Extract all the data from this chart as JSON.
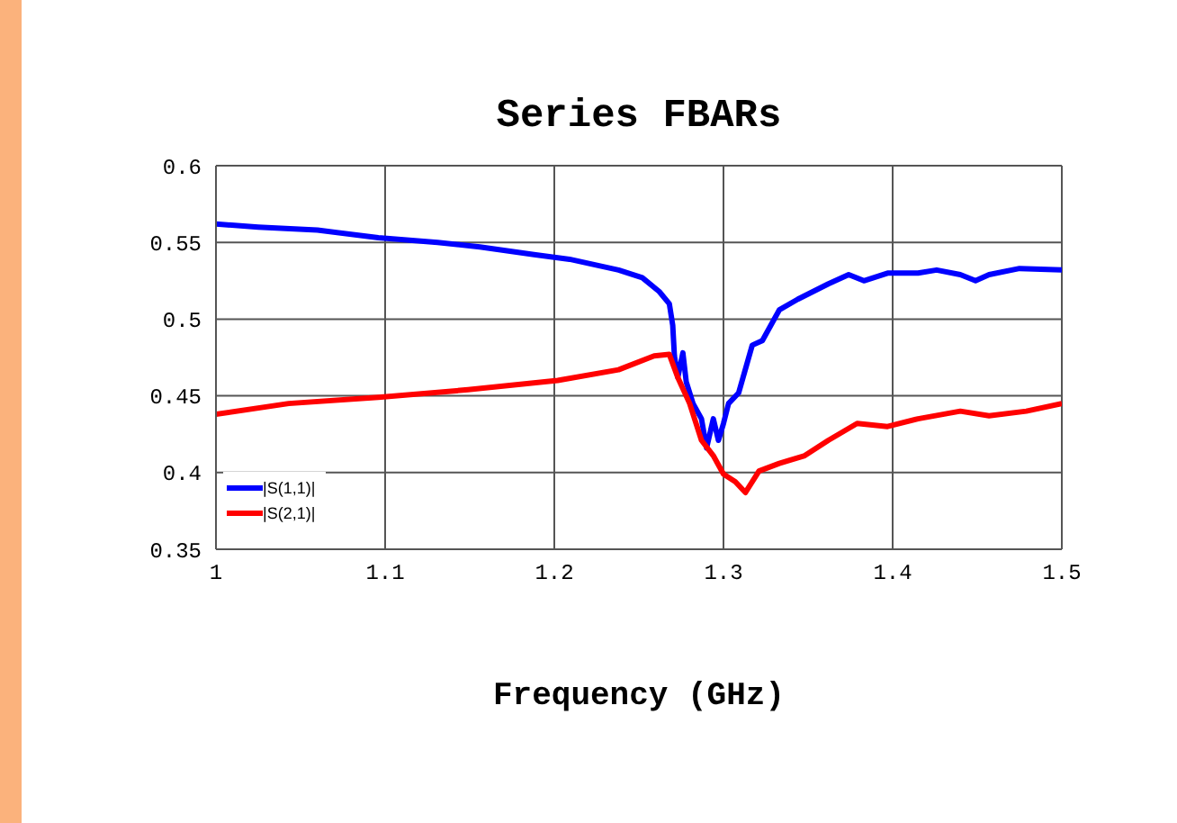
{
  "chart_data": {
    "type": "line",
    "title": "Series FBARs",
    "xlabel": "Frequency (GHz)",
    "xlim": [
      1,
      1.5
    ],
    "xticks": [
      1,
      1.1,
      1.2,
      1.3,
      1.4,
      1.5
    ],
    "ylim": [
      0.35,
      0.6
    ],
    "yticks": [
      0.35,
      0.4,
      0.45,
      0.5,
      0.55,
      0.6
    ],
    "grid": true,
    "legend": "bottom left",
    "series": [
      {
        "name": "|S(1,1)|",
        "color": "#0000ff",
        "x": [
          1.0,
          1.025,
          1.06,
          1.096,
          1.131,
          1.156,
          1.188,
          1.209,
          1.238,
          1.252,
          1.262,
          1.268,
          1.27,
          1.271,
          1.273,
          1.276,
          1.278,
          1.282,
          1.287,
          1.29,
          1.294,
          1.297,
          1.3,
          1.303,
          1.309,
          1.317,
          1.323,
          1.333,
          1.344,
          1.362,
          1.374,
          1.383,
          1.397,
          1.415,
          1.426,
          1.44,
          1.449,
          1.457,
          1.475,
          1.5
        ],
        "values": [
          0.562,
          0.56,
          0.558,
          0.553,
          0.55,
          0.547,
          0.542,
          0.539,
          0.532,
          0.527,
          0.518,
          0.51,
          0.496,
          0.476,
          0.462,
          0.478,
          0.459,
          0.445,
          0.435,
          0.416,
          0.435,
          0.421,
          0.432,
          0.445,
          0.452,
          0.483,
          0.486,
          0.506,
          0.513,
          0.523,
          0.529,
          0.525,
          0.53,
          0.53,
          0.532,
          0.529,
          0.525,
          0.529,
          0.533,
          0.532
        ]
      },
      {
        "name": "|S(2,1)|",
        "color": "#ff0000",
        "x": [
          1.0,
          1.043,
          1.096,
          1.149,
          1.202,
          1.238,
          1.259,
          1.268,
          1.273,
          1.28,
          1.287,
          1.294,
          1.3,
          1.307,
          1.313,
          1.321,
          1.333,
          1.348,
          1.362,
          1.379,
          1.397,
          1.415,
          1.44,
          1.457,
          1.479,
          1.5
        ],
        "values": [
          0.438,
          0.445,
          0.449,
          0.454,
          0.46,
          0.467,
          0.476,
          0.477,
          0.462,
          0.445,
          0.421,
          0.411,
          0.399,
          0.394,
          0.387,
          0.401,
          0.406,
          0.411,
          0.421,
          0.432,
          0.43,
          0.435,
          0.44,
          0.437,
          0.44,
          0.445
        ]
      }
    ]
  }
}
